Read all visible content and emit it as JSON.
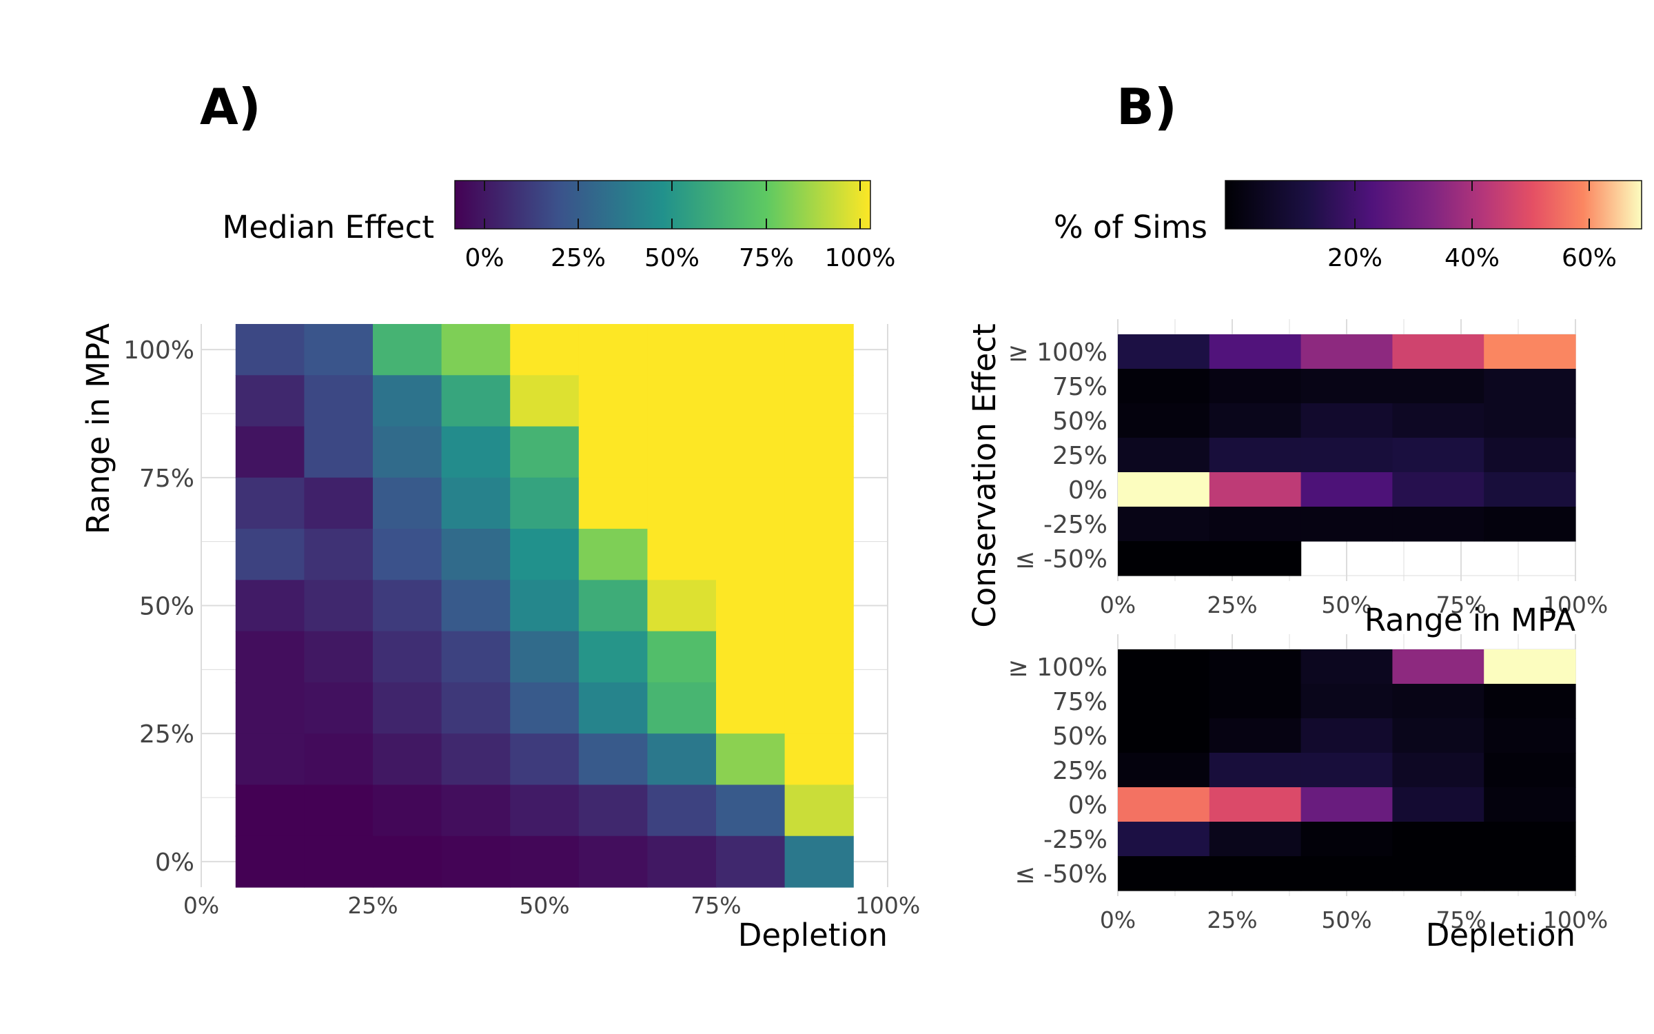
{
  "panels": {
    "a": "A)",
    "b": "B)"
  },
  "panel_a": {
    "legend": {
      "title": "Median Effect",
      "ticks": [
        "0%",
        "25%",
        "50%",
        "75%",
        "100%"
      ],
      "colormap": "viridis"
    },
    "xlabel": "Depletion",
    "ylabel": "Range in MPA",
    "x_ticks": [
      "0%",
      "25%",
      "50%",
      "75%",
      "100%"
    ],
    "y_ticks": [
      "0%",
      "25%",
      "50%",
      "75%",
      "100%"
    ]
  },
  "panel_b": {
    "legend": {
      "title": "% of Sims",
      "ticks": [
        "20%",
        "40%",
        "60%"
      ],
      "colormap": "magma"
    },
    "ylabel": "Conservation Effect",
    "top_xlabel": "Range in MPA",
    "bottom_xlabel": "Depletion",
    "x_ticks": [
      "0%",
      "25%",
      "50%",
      "75%",
      "100%"
    ],
    "y_ticks": [
      "≥ 100%",
      "75%",
      "50%",
      "25%",
      "0%",
      "-25%",
      "≤ -50%"
    ]
  },
  "chart_data": [
    {
      "type": "heatmap",
      "title": "",
      "xlabel": "Depletion",
      "ylabel": "Range in MPA",
      "value_label": "Median Effect",
      "colorscale": "viridis",
      "legend_placement": "top",
      "grid": true,
      "xlim": [
        0,
        1
      ],
      "ylim": [
        -0.05,
        1.05
      ],
      "x_centers": [
        0.1,
        0.2,
        0.3,
        0.4,
        0.5,
        0.6,
        0.7,
        0.8,
        0.9
      ],
      "y_centers": [
        0.0,
        0.1,
        0.2,
        0.3,
        0.4,
        0.5,
        0.6,
        0.7,
        0.8,
        0.9,
        1.0
      ],
      "values_top_to_bottom": [
        [
          0.22,
          0.26,
          0.65,
          0.8,
          1.0,
          1.0,
          1.0,
          1.0,
          1.0
        ],
        [
          0.12,
          0.22,
          0.38,
          0.59,
          0.95,
          1.0,
          1.0,
          1.0,
          1.0
        ],
        [
          0.06,
          0.22,
          0.35,
          0.48,
          0.65,
          1.0,
          1.0,
          1.0,
          1.0
        ],
        [
          0.15,
          0.1,
          0.28,
          0.44,
          0.58,
          1.0,
          1.0,
          1.0,
          1.0
        ],
        [
          0.2,
          0.15,
          0.25,
          0.35,
          0.5,
          0.8,
          1.0,
          1.0,
          1.0
        ],
        [
          0.08,
          0.12,
          0.18,
          0.28,
          0.46,
          0.62,
          0.95,
          1.0,
          1.0
        ],
        [
          0.04,
          0.07,
          0.14,
          0.2,
          0.35,
          0.52,
          0.7,
          1.0,
          1.0
        ],
        [
          0.04,
          0.05,
          0.11,
          0.17,
          0.28,
          0.45,
          0.66,
          1.0,
          1.0
        ],
        [
          0.04,
          0.03,
          0.07,
          0.12,
          0.18,
          0.28,
          0.4,
          0.82,
          1.0
        ],
        [
          0.0,
          0.0,
          0.02,
          0.04,
          0.08,
          0.12,
          0.2,
          0.28,
          0.92
        ],
        [
          0.0,
          0.0,
          0.0,
          0.01,
          0.02,
          0.04,
          0.07,
          0.12,
          0.4
        ]
      ]
    },
    {
      "type": "heatmap",
      "title": "",
      "xlabel": "Range in MPA",
      "ylabel": "Conservation Effect",
      "value_label": "% of Sims",
      "colorscale": "magma",
      "legend_placement": "top",
      "grid": true,
      "x_centers": [
        "10%",
        "30%",
        "50%",
        "70%",
        "90%"
      ],
      "y_categories_top_to_bottom": [
        "≥ 100%",
        "75%",
        "50%",
        "25%",
        "0%",
        "-25%",
        "≤ -50%"
      ],
      "values_top_to_bottom": [
        [
          14,
          25,
          37,
          48,
          60
        ],
        [
          1,
          3,
          4,
          4,
          6
        ],
        [
          2,
          5,
          9,
          7,
          6
        ],
        [
          6,
          12,
          12,
          13,
          8
        ],
        [
          70,
          45,
          24,
          16,
          12
        ],
        [
          4,
          3,
          3,
          3,
          2
        ],
        [
          0,
          0,
          null,
          null,
          null
        ]
      ]
    },
    {
      "type": "heatmap",
      "title": "",
      "xlabel": "Depletion",
      "ylabel": "Conservation Effect",
      "value_label": "% of Sims",
      "colorscale": "magma",
      "grid": true,
      "x_centers": [
        "10%",
        "30%",
        "50%",
        "70%",
        "90%"
      ],
      "y_categories_top_to_bottom": [
        "≥ 100%",
        "75%",
        "50%",
        "25%",
        "0%",
        "-25%",
        "≤ -50%"
      ],
      "values_top_to_bottom": [
        [
          0,
          1,
          6,
          37,
          70
        ],
        [
          0,
          1,
          5,
          4,
          1
        ],
        [
          0,
          3,
          9,
          5,
          2
        ],
        [
          2,
          12,
          12,
          7,
          1
        ],
        [
          57,
          50,
          30,
          10,
          2
        ],
        [
          14,
          5,
          1,
          0,
          0
        ],
        [
          0,
          0,
          0,
          0,
          0
        ]
      ]
    }
  ]
}
